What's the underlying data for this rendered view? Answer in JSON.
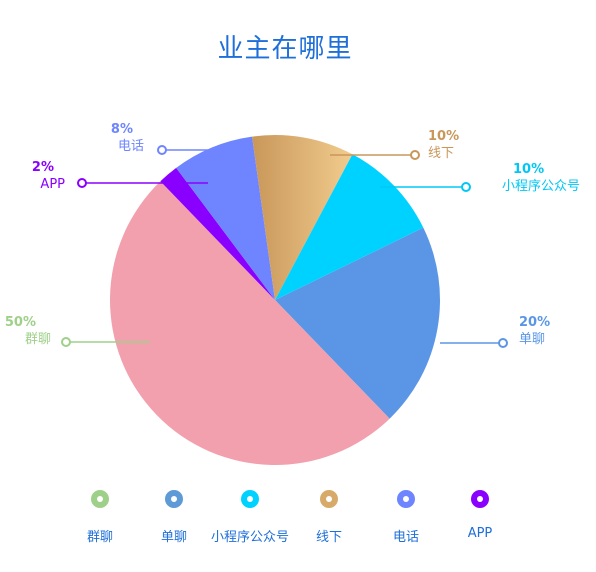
{
  "chart_data": {
    "type": "pie",
    "title": "业主在哪里",
    "slices": [
      {
        "name": "单聊",
        "value": 20,
        "label": "20%",
        "color": "#5b96e6"
      },
      {
        "name": "群聊",
        "value": 50,
        "label": "50%",
        "color": "#f2a0ad"
      },
      {
        "name": "APP",
        "value": 2,
        "label": "2%",
        "color": "#8a00ff"
      },
      {
        "name": "电话",
        "value": 8,
        "label": "8%",
        "color": "#6e85ff"
      },
      {
        "name": "线下",
        "value": 10,
        "label": "10%",
        "color": "#d8aa6a"
      },
      {
        "name": "小程序公众号",
        "value": 10,
        "label": "10%",
        "color": "#00d2ff"
      }
    ],
    "legend": {
      "position": "bottom",
      "items": [
        {
          "name": "群聊",
          "color": "#9fd08a"
        },
        {
          "name": "单聊",
          "color": "#5e9ad6"
        },
        {
          "name": "小程序公众号",
          "color": "#00d2ff"
        },
        {
          "name": "线下",
          "color": "#d8aa6a"
        },
        {
          "name": "电话",
          "color": "#6e85ff"
        },
        {
          "name": "APP",
          "color": "#8a00ff"
        }
      ]
    },
    "label_colors": {
      "单聊": "#5b96e6",
      "群聊": "#9fd08a",
      "APP": "#8a00ff",
      "电话": "#6e85ff",
      "线下": "#c9975a",
      "小程序公众号": "#00c8f5"
    }
  }
}
